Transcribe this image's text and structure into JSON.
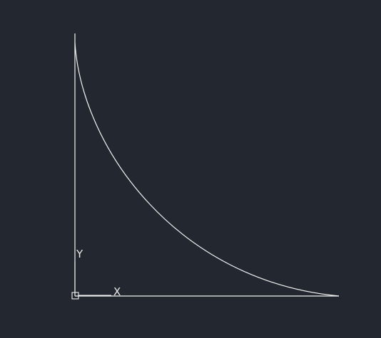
{
  "drawing": {
    "background_color": "#232830",
    "line_color": "#f2f2f2",
    "ucs_icon": {
      "x_label": "X",
      "y_label": "Y"
    },
    "entities": [
      {
        "type": "line",
        "name": "vertical-line"
      },
      {
        "type": "line",
        "name": "horizontal-line"
      },
      {
        "type": "arc",
        "name": "quarter-arc"
      }
    ]
  }
}
